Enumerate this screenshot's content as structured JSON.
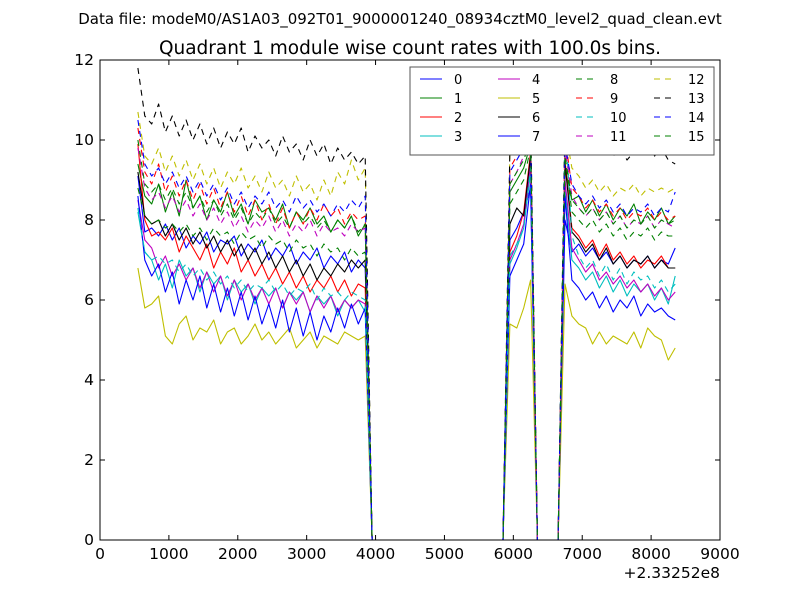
{
  "chart_data": {
    "type": "line",
    "suptitle": "Data file: modeM0/AS1A03_092T01_9000001240_08934cztM0_level2_quad_clean.evt",
    "title": "Quadrant 1 module wise count rates with 100.0s bins.",
    "xlabel": "",
    "ylabel": "",
    "x_offset_label": "+2.33252e8",
    "xlim": [
      0,
      9000
    ],
    "ylim": [
      0,
      12
    ],
    "x_ticks": [
      0,
      1000,
      2000,
      3000,
      4000,
      5000,
      6000,
      7000,
      8000,
      9000
    ],
    "y_ticks": [
      0,
      2,
      4,
      6,
      8,
      10,
      12
    ],
    "grid": false,
    "legend_position": "top-right",
    "legend_columns": 4,
    "x_range_note": "100 s bins from ~550 to ~8350 (offset from 2.33252e8); counts drop to 0 during 3950–5850 and 6450–6650",
    "segments": [
      {
        "start": 550,
        "end": 3850
      },
      {
        "start": 5950,
        "end": 6250
      },
      {
        "start": 6750,
        "end": 8350
      }
    ],
    "series": [
      {
        "name": "0",
        "color": "#0000ff",
        "dash": "solid",
        "seg1": [
          9.1,
          7.7,
          7.8,
          7.6,
          7.9,
          7.5,
          7.8,
          7.3,
          7.6,
          7.4,
          7.7,
          7.2,
          7.5,
          7.4,
          7.6,
          7.1,
          7.4,
          7.2,
          7.5,
          7.0,
          7.3,
          7.1,
          7.4,
          6.9,
          7.2,
          7.0,
          7.3,
          6.8,
          7.1,
          6.9,
          7.2,
          6.7,
          7.0,
          6.8
        ],
        "seg2": [
          7.5,
          7.8,
          8.2,
          8.8
        ],
        "seg3": [
          8.0,
          7.2,
          7.4,
          7.1,
          7.3,
          7.0,
          7.2,
          6.9,
          7.1,
          6.8,
          7.0,
          6.9,
          7.1,
          6.8,
          7.0,
          6.9,
          7.3
        ]
      },
      {
        "name": "1",
        "color": "#008000",
        "dash": "solid",
        "seg1": [
          9.4,
          8.6,
          8.4,
          8.9,
          8.2,
          8.7,
          8.1,
          9.0,
          8.3,
          8.6,
          8.0,
          8.5,
          8.2,
          8.7,
          8.1,
          8.4,
          7.9,
          8.5,
          8.2,
          8.3,
          8.0,
          8.4,
          7.8,
          8.2,
          8.0,
          8.3,
          7.9,
          8.1,
          7.7,
          8.0,
          7.8,
          8.1,
          7.6,
          7.9
        ],
        "seg2": [
          8.7,
          9.0,
          9.3,
          9.9
        ],
        "seg3": [
          9.3,
          8.5,
          8.6,
          8.2,
          8.5,
          8.1,
          8.4,
          8.0,
          8.3,
          8.1,
          8.4,
          7.9,
          8.2,
          8.0,
          8.3,
          7.9,
          8.1
        ]
      },
      {
        "name": "2",
        "color": "#ff0000",
        "dash": "solid",
        "seg1": [
          9.9,
          8.0,
          7.6,
          7.7,
          7.5,
          7.8,
          7.2,
          7.6,
          7.3,
          7.0,
          7.4,
          6.8,
          7.2,
          6.9,
          7.3,
          6.7,
          7.0,
          6.6,
          6.9,
          6.5,
          6.8,
          6.4,
          6.7,
          6.3,
          6.6,
          6.2,
          6.5,
          6.3,
          6.6,
          6.2,
          6.5,
          6.1,
          6.4,
          6.3
        ],
        "seg2": [
          7.2,
          7.6,
          8.2,
          9.7
        ],
        "seg3": [
          9.5,
          7.8,
          7.6,
          7.3,
          7.5,
          7.1,
          7.4,
          7.0,
          7.2,
          6.9,
          7.1,
          6.8,
          7.0,
          6.9,
          7.1,
          6.8,
          6.8
        ]
      },
      {
        "name": "3",
        "color": "#00bfbf",
        "dash": "solid",
        "seg1": [
          8.2,
          7.2,
          7.0,
          6.5,
          6.9,
          6.3,
          7.0,
          6.6,
          6.8,
          6.2,
          6.7,
          6.4,
          6.6,
          6.0,
          6.5,
          6.2,
          6.4,
          5.9,
          6.3,
          6.1,
          6.3,
          5.8,
          6.2,
          6.0,
          6.2,
          5.7,
          6.1,
          5.9,
          6.1,
          5.6,
          6.0,
          5.8,
          6.0,
          5.7
        ],
        "seg2": [
          6.9,
          7.3,
          7.8,
          9.2
        ],
        "seg3": [
          8.8,
          7.0,
          6.8,
          6.5,
          6.7,
          6.3,
          6.6,
          6.2,
          6.5,
          6.1,
          6.4,
          6.2,
          6.4,
          6.0,
          6.3,
          5.9,
          6.6
        ]
      },
      {
        "name": "4",
        "color": "#bf00bf",
        "dash": "solid",
        "seg1": [
          8.5,
          7.5,
          7.3,
          6.8,
          7.1,
          6.6,
          6.9,
          6.5,
          6.8,
          6.3,
          6.7,
          6.2,
          6.6,
          6.1,
          6.5,
          6.0,
          6.4,
          6.0,
          6.3,
          5.9,
          6.3,
          5.8,
          6.2,
          5.9,
          6.2,
          5.7,
          6.1,
          5.8,
          6.1,
          5.7,
          6.0,
          5.8,
          6.0,
          5.9
        ],
        "seg2": [
          7.0,
          7.4,
          7.9,
          9.4
        ],
        "seg3": [
          9.0,
          7.3,
          7.0,
          6.7,
          6.9,
          6.5,
          6.7,
          6.4,
          6.6,
          6.3,
          6.5,
          6.2,
          6.4,
          6.1,
          6.3,
          6.0,
          6.2
        ]
      },
      {
        "name": "5",
        "color": "#bfbf00",
        "dash": "solid",
        "seg1": [
          6.8,
          5.8,
          5.9,
          6.1,
          5.1,
          4.9,
          5.4,
          5.6,
          5.0,
          5.3,
          5.2,
          5.5,
          4.9,
          5.2,
          5.3,
          4.9,
          5.1,
          5.4,
          5.0,
          5.2,
          4.9,
          5.1,
          5.3,
          4.8,
          5.0,
          5.2,
          4.8,
          5.1,
          5.0,
          4.9,
          5.2,
          5.1,
          5.0,
          5.1
        ],
        "seg2": [
          5.4,
          5.3,
          5.8,
          6.5
        ],
        "seg3": [
          6.4,
          5.6,
          5.4,
          5.3,
          4.9,
          5.2,
          4.9,
          5.1,
          5.0,
          4.9,
          5.2,
          4.8,
          5.3,
          5.1,
          5.0,
          4.5,
          4.8
        ]
      },
      {
        "name": "6",
        "color": "#000000",
        "dash": "solid",
        "seg1": [
          9.2,
          8.1,
          7.9,
          8.0,
          7.6,
          7.9,
          7.5,
          7.8,
          7.4,
          7.7,
          7.3,
          7.6,
          7.2,
          7.5,
          7.1,
          7.4,
          7.0,
          7.3,
          6.9,
          7.2,
          6.8,
          7.1,
          6.7,
          7.0,
          6.6,
          6.9,
          6.5,
          6.8,
          6.6,
          6.9,
          6.7,
          7.0,
          6.8,
          7.0
        ],
        "seg2": [
          7.9,
          8.3,
          8.1,
          9.6
        ],
        "seg3": [
          9.4,
          7.7,
          7.5,
          7.2,
          7.4,
          7.0,
          7.3,
          6.9,
          7.1,
          6.8,
          7.0,
          6.9,
          7.1,
          6.8,
          7.0,
          6.8,
          6.8
        ]
      },
      {
        "name": "7",
        "color": "#0000ff",
        "dash": "solid",
        "seg1": [
          8.6,
          7.0,
          6.6,
          6.9,
          6.2,
          6.7,
          5.9,
          6.5,
          6.0,
          6.6,
          5.8,
          6.4,
          5.7,
          6.3,
          5.6,
          6.2,
          5.5,
          6.1,
          5.4,
          5.9,
          5.3,
          6.0,
          5.2,
          5.8,
          5.1,
          5.7,
          5.0,
          5.6,
          5.2,
          5.8,
          5.3,
          5.9,
          5.4,
          5.8
        ],
        "seg2": [
          6.6,
          7.0,
          7.4,
          8.9
        ],
        "seg3": [
          8.6,
          6.5,
          6.3,
          6.0,
          6.2,
          5.8,
          6.1,
          5.7,
          6.0,
          5.8,
          6.1,
          5.6,
          5.9,
          5.7,
          5.8,
          5.6,
          5.5
        ]
      },
      {
        "name": "8",
        "color": "#008000",
        "dash": "dashed",
        "seg1": [
          8.8,
          8.1,
          7.9,
          8.0,
          7.8,
          7.9,
          7.7,
          7.9,
          7.6,
          7.8,
          7.5,
          7.8,
          7.6,
          7.7,
          7.4,
          7.7,
          7.5,
          7.6,
          7.3,
          7.6,
          7.4,
          7.5,
          7.2,
          7.5,
          7.3,
          7.4,
          7.1,
          7.4,
          7.2,
          7.3,
          7.0,
          7.3,
          7.1,
          7.2
        ],
        "seg2": [
          8.4,
          8.7,
          9.0,
          9.8
        ],
        "seg3": [
          9.6,
          8.2,
          8.0,
          7.8,
          8.0,
          7.7,
          7.9,
          7.6,
          7.8,
          7.5,
          7.7,
          7.6,
          7.8,
          7.5,
          7.7,
          7.6,
          7.6
        ]
      },
      {
        "name": "9",
        "color": "#ff0000",
        "dash": "dashed",
        "seg1": [
          10.3,
          9.2,
          8.9,
          9.4,
          8.7,
          9.1,
          8.6,
          9.0,
          8.5,
          8.9,
          8.4,
          8.8,
          8.3,
          8.7,
          8.2,
          8.6,
          8.1,
          8.5,
          8.0,
          8.4,
          7.9,
          8.3,
          7.8,
          8.2,
          7.9,
          8.3,
          8.0,
          8.4,
          8.1,
          8.3,
          7.9,
          8.2,
          8.0,
          8.1
        ],
        "seg2": [
          9.3,
          9.6,
          9.9,
          10.2
        ],
        "seg3": [
          10.1,
          8.8,
          8.6,
          8.3,
          8.5,
          8.2,
          8.4,
          8.1,
          8.3,
          8.0,
          8.2,
          8.1,
          8.3,
          8.0,
          8.2,
          8.0,
          8.1
        ]
      },
      {
        "name": "10",
        "color": "#00bfbf",
        "dash": "dashed",
        "seg1": [
          8.3,
          7.2,
          7.0,
          7.1,
          6.9,
          7.0,
          6.7,
          6.9,
          6.6,
          6.8,
          6.5,
          6.7,
          6.4,
          6.6,
          6.3,
          6.5,
          6.2,
          6.4,
          6.3,
          6.5,
          6.2,
          6.4,
          6.1,
          6.3,
          6.2,
          6.4,
          6.0,
          6.3,
          6.1,
          6.2,
          6.0,
          6.2,
          6.1,
          6.0
        ],
        "seg2": [
          7.1,
          7.4,
          7.8,
          9.3
        ],
        "seg3": [
          10.5,
          7.6,
          7.1,
          6.8,
          7.0,
          6.6,
          6.9,
          6.5,
          6.8,
          6.4,
          6.7,
          6.5,
          6.6,
          6.3,
          6.5,
          6.2,
          6.4
        ]
      },
      {
        "name": "11",
        "color": "#bf00bf",
        "dash": "dashed",
        "seg1": [
          9.8,
          8.8,
          8.5,
          8.7,
          8.3,
          8.6,
          8.2,
          8.5,
          8.1,
          8.4,
          8.0,
          8.3,
          7.9,
          8.2,
          7.8,
          8.1,
          7.7,
          8.0,
          7.8,
          8.1,
          7.7,
          8.0,
          7.6,
          7.9,
          7.7,
          8.0,
          7.6,
          7.9,
          7.7,
          7.8,
          7.6,
          7.9,
          7.7,
          7.8
        ],
        "seg2": [
          8.9,
          9.2,
          9.6,
          10.0
        ],
        "seg3": [
          9.8,
          8.6,
          8.3,
          8.1,
          8.3,
          8.0,
          8.2,
          7.9,
          8.1,
          7.8,
          8.0,
          7.9,
          8.1,
          7.8,
          8.0,
          7.9,
          7.8
        ]
      },
      {
        "name": "12",
        "color": "#bfbf00",
        "dash": "dashed",
        "seg1": [
          10.7,
          9.6,
          9.4,
          9.8,
          9.2,
          9.6,
          9.1,
          9.5,
          9.0,
          9.4,
          8.9,
          9.3,
          8.8,
          9.2,
          8.9,
          9.3,
          8.8,
          9.1,
          8.7,
          9.2,
          8.8,
          9.0,
          8.6,
          9.1,
          8.7,
          8.9,
          8.5,
          9.0,
          8.6,
          9.2,
          8.9,
          9.5,
          9.0,
          9.3
        ],
        "seg2": [
          9.7,
          10.0,
          10.2,
          10.5
        ],
        "seg3": [
          10.3,
          9.3,
          9.1,
          8.8,
          9.0,
          8.7,
          8.9,
          8.6,
          8.8,
          8.7,
          8.9,
          8.6,
          8.8,
          8.7,
          8.8,
          8.7,
          8.8
        ]
      },
      {
        "name": "13",
        "color": "#000000",
        "dash": "dashed",
        "seg1": [
          11.8,
          10.6,
          10.4,
          10.9,
          10.2,
          10.6,
          10.1,
          10.5,
          10.0,
          10.4,
          9.9,
          10.3,
          9.8,
          10.2,
          9.9,
          10.3,
          9.7,
          10.1,
          9.8,
          10.0,
          9.6,
          10.1,
          9.7,
          9.9,
          9.5,
          10.0,
          9.6,
          9.9,
          9.4,
          9.8,
          9.5,
          9.7,
          9.4,
          9.6
        ],
        "seg2": [
          9.8,
          10.1,
          10.3,
          10.6
        ],
        "seg3": [
          10.5,
          10.3,
          10.1,
          9.8,
          10.0,
          9.7,
          9.9,
          9.6,
          9.8,
          9.5,
          9.7,
          9.8,
          10.0,
          9.6,
          9.8,
          9.5,
          9.4
        ]
      },
      {
        "name": "14",
        "color": "#0000ff",
        "dash": "dashed",
        "seg1": [
          10.5,
          9.4,
          9.1,
          9.3,
          8.9,
          9.2,
          8.8,
          9.1,
          8.7,
          9.0,
          8.6,
          8.9,
          8.5,
          8.8,
          8.4,
          8.7,
          8.3,
          8.6,
          8.4,
          8.7,
          8.3,
          8.5,
          8.2,
          8.6,
          8.3,
          8.5,
          8.2,
          8.4,
          8.1,
          8.4,
          8.2,
          8.5,
          8.3,
          8.6
        ],
        "seg2": [
          9.2,
          9.5,
          9.8,
          10.1
        ],
        "seg3": [
          9.9,
          8.9,
          8.6,
          8.4,
          8.6,
          8.3,
          8.5,
          8.2,
          8.4,
          8.1,
          8.3,
          8.2,
          8.4,
          8.1,
          8.3,
          8.2,
          8.7
        ]
      },
      {
        "name": "15",
        "color": "#008000",
        "dash": "dashed",
        "seg1": [
          10.0,
          8.9,
          8.7,
          8.9,
          8.5,
          8.8,
          8.4,
          8.7,
          8.3,
          8.6,
          8.2,
          8.5,
          8.1,
          8.4,
          8.0,
          8.3,
          7.9,
          8.2,
          8.0,
          8.3,
          7.9,
          8.1,
          7.8,
          8.2,
          7.9,
          8.1,
          7.8,
          8.0,
          7.7,
          8.0,
          7.8,
          8.1,
          7.7,
          7.9
        ],
        "seg2": [
          8.9,
          9.2,
          9.5,
          10.0
        ],
        "seg3": [
          9.6,
          8.5,
          8.3,
          8.1,
          8.3,
          8.0,
          8.2,
          7.9,
          8.1,
          7.8,
          8.0,
          7.9,
          8.1,
          7.8,
          8.0,
          7.9,
          8.0
        ]
      }
    ]
  }
}
